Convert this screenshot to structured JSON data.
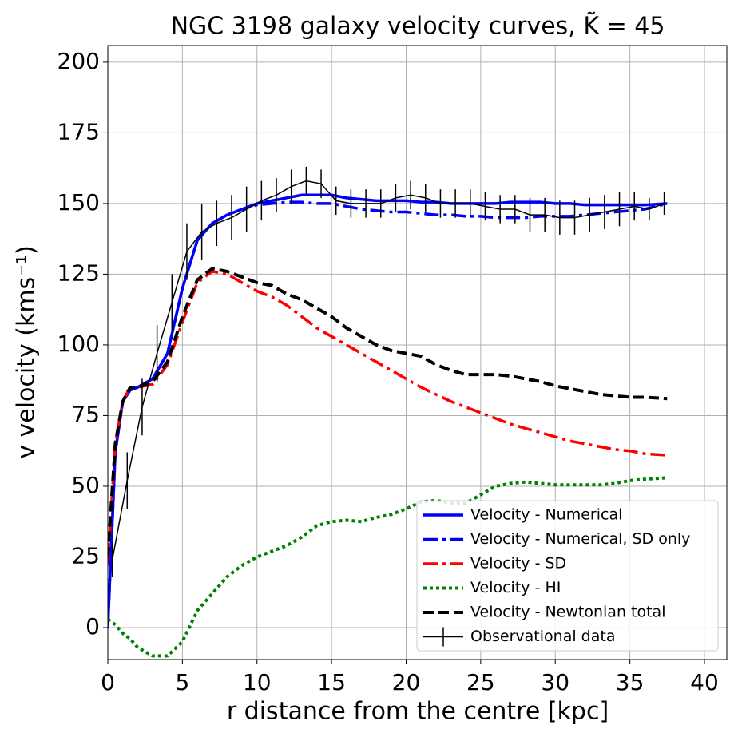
{
  "chart_data": {
    "type": "line",
    "title": "NGC 3198 galaxy velocity curves, K̃ = 45",
    "x_label": "r distance from the centre [kpc]",
    "y_label": "v velocity (kms⁻¹)",
    "x": [
      0,
      0.5,
      1,
      1.5,
      2,
      3,
      4,
      5,
      6,
      7,
      8,
      9,
      10,
      11,
      12,
      13,
      14,
      15,
      16,
      17,
      18,
      19,
      20,
      21,
      22,
      23,
      24,
      25,
      26,
      27,
      28,
      29,
      30,
      31,
      32,
      33,
      34,
      35,
      36,
      37.5
    ],
    "series": [
      {
        "name": "Velocity - Numerical",
        "color": "#0000ff",
        "linestyle": "solid",
        "values": [
          0,
          62,
          80,
          84,
          85,
          88,
          97,
          120,
          137,
          143,
          146,
          148,
          150,
          151,
          152,
          153,
          153,
          153,
          152,
          151.5,
          151,
          151,
          151,
          150.5,
          150.5,
          150,
          150,
          150,
          150,
          150.5,
          150.5,
          150.5,
          150,
          150,
          149.5,
          149.5,
          149.5,
          149.5,
          149.5,
          150
        ]
      },
      {
        "name": "Velocity - Numerical, SD only",
        "color": "#0000ff",
        "linestyle": "dashdot",
        "values": [
          0,
          62,
          80,
          84,
          85,
          88,
          97,
          120,
          137,
          143,
          146,
          148,
          149.5,
          150,
          150.5,
          150.5,
          150,
          150,
          149,
          148,
          147.5,
          147,
          147,
          146.5,
          146,
          146,
          145.5,
          145.5,
          145,
          145,
          145,
          145.5,
          145.5,
          145.5,
          146,
          146.5,
          147,
          147.5,
          148,
          150
        ]
      },
      {
        "name": "Velocity - SD",
        "color": "#ff0000",
        "linestyle": "dashdot",
        "values": [
          22,
          65,
          80,
          85,
          85,
          86,
          93,
          108,
          122,
          126,
          125,
          122,
          119,
          117,
          114,
          110,
          106,
          103,
          100,
          97,
          94,
          91,
          88,
          85,
          82.5,
          80,
          78,
          76,
          74,
          72,
          70.5,
          69,
          67.5,
          66,
          65,
          64,
          63,
          62.5,
          61.5,
          61
        ]
      },
      {
        "name": "Velocity - HI",
        "color": "#008000",
        "linestyle": "dotted",
        "values": [
          3,
          1,
          -2,
          -4,
          -7,
          -10,
          -10,
          -5,
          6,
          12,
          18,
          22,
          25,
          27,
          29,
          32,
          36,
          37.5,
          38,
          37.5,
          39,
          40,
          42,
          44.5,
          45,
          44,
          44,
          47,
          50,
          51,
          51.5,
          51,
          50.5,
          50.5,
          50.5,
          50.5,
          51,
          52,
          52.5,
          53
        ]
      },
      {
        "name": "Velocity - Newtonian total",
        "color": "#000000",
        "linestyle": "dashed",
        "values": [
          25,
          65,
          80,
          85,
          85,
          87,
          94,
          110,
          123,
          127,
          126,
          124,
          122,
          121,
          118,
          116,
          113,
          110,
          106,
          103,
          100,
          98,
          97,
          96,
          93,
          91,
          89.5,
          89.5,
          89.5,
          89,
          88,
          87,
          85.5,
          84.5,
          83.5,
          82.5,
          82,
          81.5,
          81.5,
          81
        ]
      },
      {
        "name": "Observational data",
        "color": "#000000",
        "linestyle": "errorbar",
        "x": [
          0.3,
          1.3,
          2.3,
          3.3,
          4.3,
          5.3,
          6.3,
          7.3,
          8.3,
          9.3,
          10.3,
          11.3,
          12.3,
          13.3,
          14.3,
          15.3,
          16.3,
          17.3,
          18.3,
          19.3,
          20.3,
          21.3,
          22.3,
          23.3,
          24.3,
          25.3,
          26.3,
          27.3,
          28.3,
          29.3,
          30.3,
          31.3,
          32.3,
          33.3,
          34.3,
          35.3,
          36.3,
          37.3
        ],
        "values": [
          24,
          52,
          78,
          97,
          115,
          133,
          140,
          143,
          145,
          148,
          151,
          153,
          156,
          158,
          157,
          151,
          150,
          150,
          150,
          152,
          153,
          152,
          150,
          150,
          150,
          149,
          148,
          148,
          146,
          146,
          145,
          145,
          146,
          147,
          148,
          149,
          148,
          150
        ],
        "errors": [
          6,
          10,
          10,
          10,
          10,
          10,
          10,
          8,
          8,
          8,
          7,
          6,
          6,
          5,
          5,
          5,
          5,
          5,
          5,
          5,
          5,
          5,
          5,
          5,
          5,
          5,
          5,
          5,
          6,
          6,
          6,
          6,
          6,
          6,
          6,
          5,
          4,
          4
        ]
      }
    ],
    "xlim": [
      0,
      41.5
    ],
    "ylim": [
      -11.3,
      205.9
    ],
    "xticks": [
      0,
      5,
      10,
      15,
      20,
      25,
      30,
      35,
      40
    ],
    "yticks": [
      0,
      25,
      50,
      75,
      100,
      125,
      150,
      175,
      200
    ],
    "grid": true,
    "legend": "lower right"
  }
}
